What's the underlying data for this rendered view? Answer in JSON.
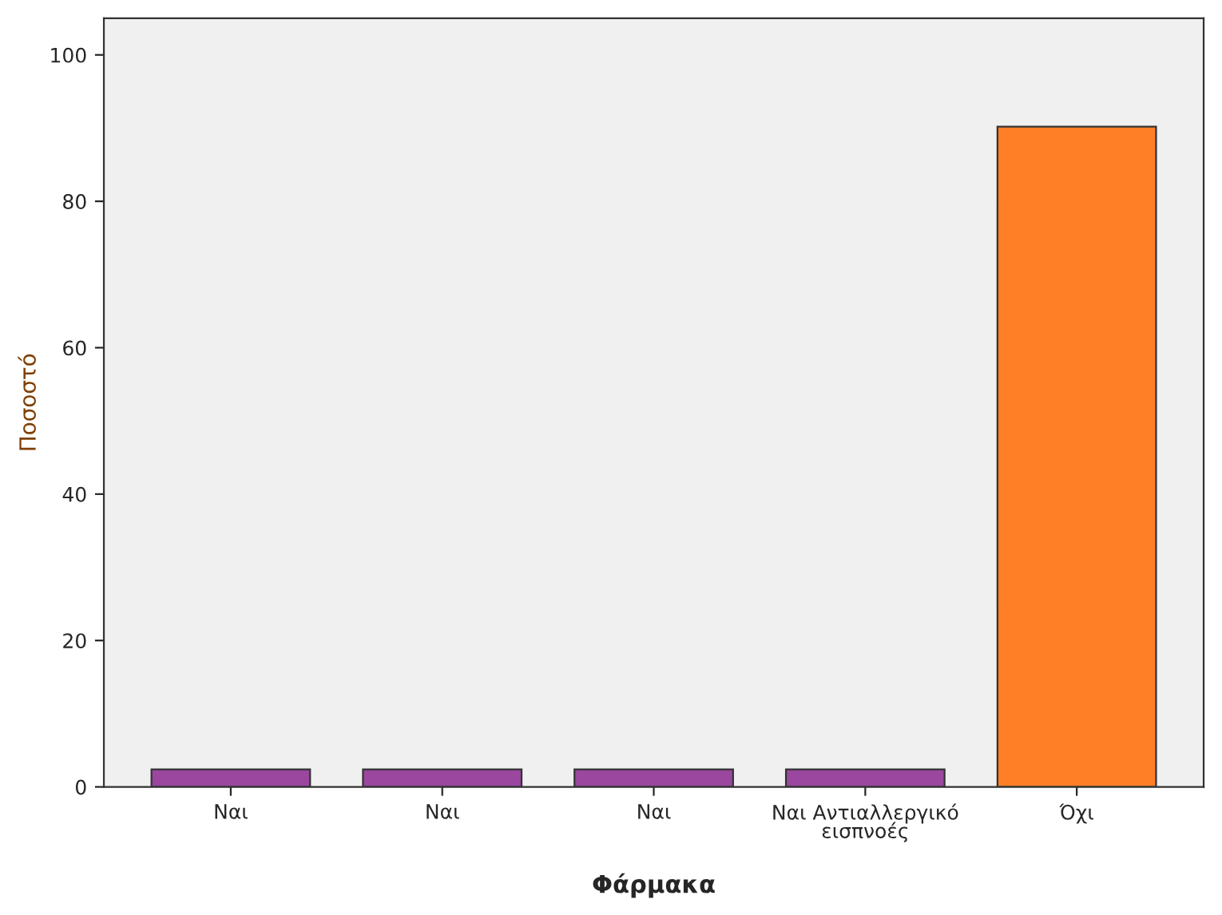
{
  "chart_data": {
    "type": "bar",
    "xlabel": "Φάρμακα",
    "ylabel": "Ποσοστό",
    "categories": [
      "Ναι",
      "Ναι",
      "Ναι",
      "Ναι Αντιαλλεργικό\nεισπνοές",
      "Όχι"
    ],
    "values": [
      2.4,
      2.4,
      2.4,
      2.4,
      90.2
    ],
    "colors": [
      "#9b479f",
      "#9b479f",
      "#9b479f",
      "#9b479f",
      "#ff7f27"
    ],
    "ylim": [
      0,
      105
    ],
    "yticks": [
      0,
      20,
      40,
      60,
      80,
      100
    ],
    "grid": false,
    "legend": false
  }
}
